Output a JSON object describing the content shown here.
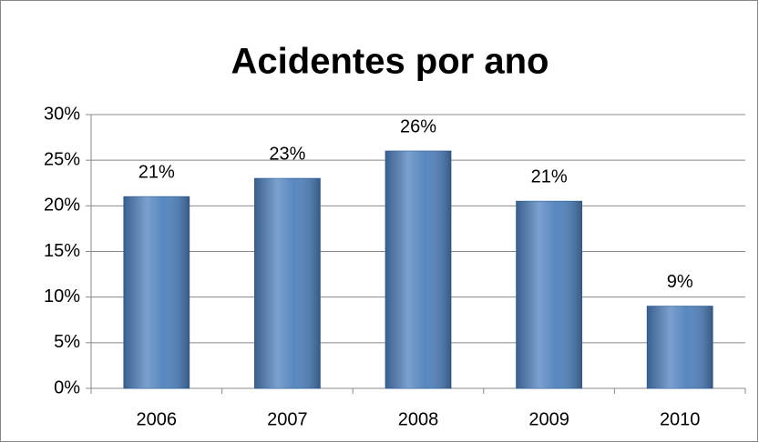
{
  "chart_data": {
    "type": "bar",
    "title": "Acidentes por ano",
    "categories": [
      "2006",
      "2007",
      "2008",
      "2009",
      "2010"
    ],
    "values": [
      21,
      23,
      26,
      20.5,
      9
    ],
    "value_labels": [
      "21%",
      "23%",
      "26%",
      "21%",
      "9%"
    ],
    "color": "#4f81bd",
    "ylim": [
      0,
      30
    ],
    "yticks": [
      {
        "value": 0,
        "label": "0%"
      },
      {
        "value": 5,
        "label": "5%"
      },
      {
        "value": 10,
        "label": "10%"
      },
      {
        "value": 15,
        "label": "15%"
      },
      {
        "value": 20,
        "label": "20%"
      },
      {
        "value": 25,
        "label": "25%"
      },
      {
        "value": 30,
        "label": "30%"
      }
    ],
    "grid": true
  }
}
